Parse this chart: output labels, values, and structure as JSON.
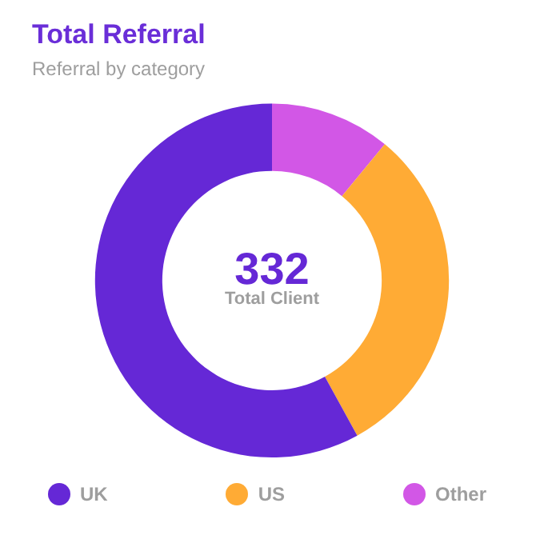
{
  "chart_data": {
    "type": "donut",
    "title": "Total Referral",
    "subtitle": "Referral by category",
    "categories": [
      "UK",
      "US",
      "Other"
    ],
    "values": [
      58,
      31,
      11
    ],
    "colors": [
      "#6528d6",
      "#ffab35",
      "#d257e6"
    ],
    "annotations": [
      "332",
      "Total Client"
    ],
    "legend": "bottom"
  }
}
